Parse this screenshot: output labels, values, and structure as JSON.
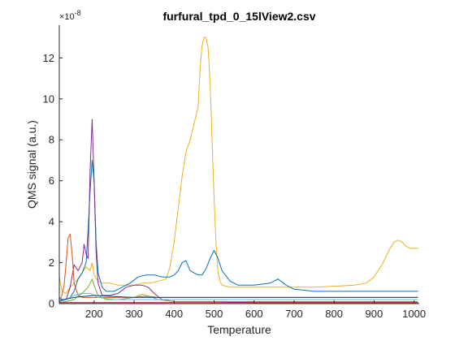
{
  "chart_data": {
    "type": "line",
    "title": "furfural_tpd_0_15lView2.csv",
    "xlabel": "Temperature",
    "ylabel": "QMS signal (a.u.)",
    "y_exponent_label": "×10",
    "y_exponent_power": "-8",
    "xlim": [
      113,
      1013
    ],
    "ylim": [
      0,
      13.6
    ],
    "y_scale_factor": 1e-08,
    "x_ticks": [
      200,
      300,
      400,
      500,
      600,
      700,
      800,
      900,
      1000
    ],
    "y_ticks": [
      0,
      2,
      4,
      6,
      8,
      10,
      12
    ],
    "grid": false,
    "legend": "none",
    "series": [
      {
        "color": "#EDB120",
        "x": [
          113,
          120,
          130,
          140,
          150,
          160,
          170,
          180,
          190,
          195,
          200,
          210,
          220,
          240,
          260,
          280,
          300,
          320,
          340,
          360,
          380,
          390,
          400,
          410,
          420,
          430,
          440,
          450,
          460,
          465,
          470,
          475,
          480,
          485,
          490,
          495,
          500,
          505,
          510,
          515,
          520,
          530,
          540,
          560,
          600,
          650,
          700,
          750,
          800,
          850,
          880,
          900,
          920,
          940,
          950,
          960,
          970,
          980,
          990,
          1000,
          1010
        ],
        "values": [
          1.3,
          0.6,
          0.5,
          0.8,
          1.0,
          1.2,
          1.5,
          1.8,
          1.6,
          2.0,
          1.4,
          1.1,
          1.0,
          1.0,
          0.9,
          0.9,
          0.9,
          1.0,
          1.0,
          1.1,
          1.2,
          1.8,
          3.0,
          4.6,
          6.2,
          7.4,
          8.0,
          8.8,
          9.6,
          11.5,
          12.6,
          13.0,
          13.0,
          12.5,
          10.8,
          8.0,
          5.2,
          2.8,
          1.5,
          1.1,
          0.9,
          0.85,
          0.8,
          0.8,
          0.8,
          0.8,
          0.8,
          0.8,
          0.85,
          0.9,
          1.0,
          1.3,
          1.9,
          2.7,
          3.0,
          3.1,
          3.0,
          2.8,
          2.7,
          2.7,
          2.7
        ]
      },
      {
        "color": "#0072BD",
        "x": [
          113,
          120,
          130,
          140,
          150,
          160,
          170,
          180,
          185,
          190,
          195,
          200,
          205,
          210,
          220,
          230,
          250,
          270,
          290,
          310,
          330,
          350,
          370,
          390,
          400,
          410,
          420,
          430,
          440,
          450,
          460,
          470,
          480,
          490,
          500,
          510,
          520,
          540,
          560,
          600,
          640,
          660,
          680,
          700,
          750,
          800,
          850,
          900,
          950,
          1000,
          1010
        ],
        "values": [
          0.3,
          0.2,
          0.2,
          0.3,
          0.6,
          1.2,
          1.5,
          2.0,
          3.6,
          5.5,
          7.0,
          6.0,
          3.0,
          1.5,
          0.8,
          0.6,
          0.6,
          0.8,
          1.0,
          1.3,
          1.4,
          1.4,
          1.3,
          1.3,
          1.4,
          1.6,
          2.0,
          2.1,
          1.6,
          1.5,
          1.4,
          1.4,
          1.7,
          2.2,
          2.6,
          2.2,
          1.6,
          1.1,
          0.9,
          0.9,
          1.0,
          1.2,
          0.9,
          0.7,
          0.6,
          0.6,
          0.6,
          0.6,
          0.6,
          0.6,
          0.6
        ]
      },
      {
        "color": "#7E2F8E",
        "x": [
          113,
          130,
          140,
          150,
          160,
          170,
          175,
          180,
          185,
          190,
          195,
          200,
          205,
          210,
          220,
          240,
          260,
          280,
          300,
          320,
          335,
          350,
          370,
          400,
          450,
          500,
          600,
          700,
          800,
          900,
          1000,
          1010
        ],
        "values": [
          0.1,
          0.2,
          0.8,
          1.9,
          1.6,
          2.0,
          2.9,
          2.4,
          2.2,
          6.5,
          9.0,
          6.0,
          2.5,
          1.0,
          0.4,
          0.4,
          0.5,
          0.8,
          0.9,
          0.9,
          0.8,
          0.5,
          0.2,
          0.1,
          0.1,
          0.1,
          0.05,
          0.05,
          0.05,
          0.05,
          0.05,
          0.05
        ]
      },
      {
        "color": "#D95319",
        "x": [
          113,
          118,
          125,
          130,
          135,
          140,
          145,
          150,
          160,
          170,
          180,
          200,
          220,
          250,
          300,
          320,
          340,
          360,
          400,
          500,
          600,
          700,
          800,
          900,
          1000,
          1010
        ],
        "values": [
          0.2,
          0.3,
          0.9,
          2.0,
          3.2,
          3.4,
          2.4,
          1.0,
          0.4,
          0.3,
          0.3,
          0.3,
          0.3,
          0.3,
          0.3,
          0.35,
          0.35,
          0.3,
          0.3,
          0.3,
          0.3,
          0.3,
          0.3,
          0.3,
          0.3,
          0.3
        ]
      },
      {
        "color": "#77AC30",
        "x": [
          113,
          130,
          150,
          170,
          185,
          195,
          200,
          210,
          230,
          260,
          300,
          320,
          340,
          360,
          400,
          500,
          600,
          700,
          800,
          900,
          1000,
          1010
        ],
        "values": [
          0.05,
          0.1,
          0.2,
          0.5,
          0.8,
          1.2,
          0.9,
          0.4,
          0.2,
          0.2,
          0.3,
          0.45,
          0.35,
          0.2,
          0.1,
          0.1,
          0.1,
          0.1,
          0.1,
          0.1,
          0.1,
          0.1
        ]
      },
      {
        "color": "#4DBEEE",
        "x": [
          113,
          130,
          150,
          170,
          190,
          200,
          210,
          250,
          300,
          400,
          500,
          600,
          700,
          800,
          900,
          1000,
          1010
        ],
        "values": [
          0.1,
          0.2,
          0.4,
          0.5,
          0.5,
          0.4,
          0.3,
          0.2,
          0.2,
          0.2,
          0.2,
          0.2,
          0.2,
          0.2,
          0.2,
          0.2,
          0.2
        ]
      },
      {
        "color": "#A2142F",
        "x": [
          113,
          150,
          200,
          300,
          400,
          500,
          600,
          700,
          800,
          900,
          1000,
          1010
        ],
        "values": [
          0.05,
          0.05,
          0.05,
          0.05,
          0.05,
          0.05,
          0.05,
          0.05,
          0.05,
          0.05,
          0.05,
          0.05
        ]
      },
      {
        "color": "#1F3F6F",
        "x": [
          113,
          150,
          200,
          250,
          300,
          350,
          400,
          500,
          600,
          700,
          800,
          900,
          1000,
          1010
        ],
        "values": [
          0.15,
          0.3,
          0.4,
          0.35,
          0.3,
          0.3,
          0.3,
          0.3,
          0.3,
          0.3,
          0.3,
          0.3,
          0.3,
          0.3
        ]
      }
    ]
  }
}
